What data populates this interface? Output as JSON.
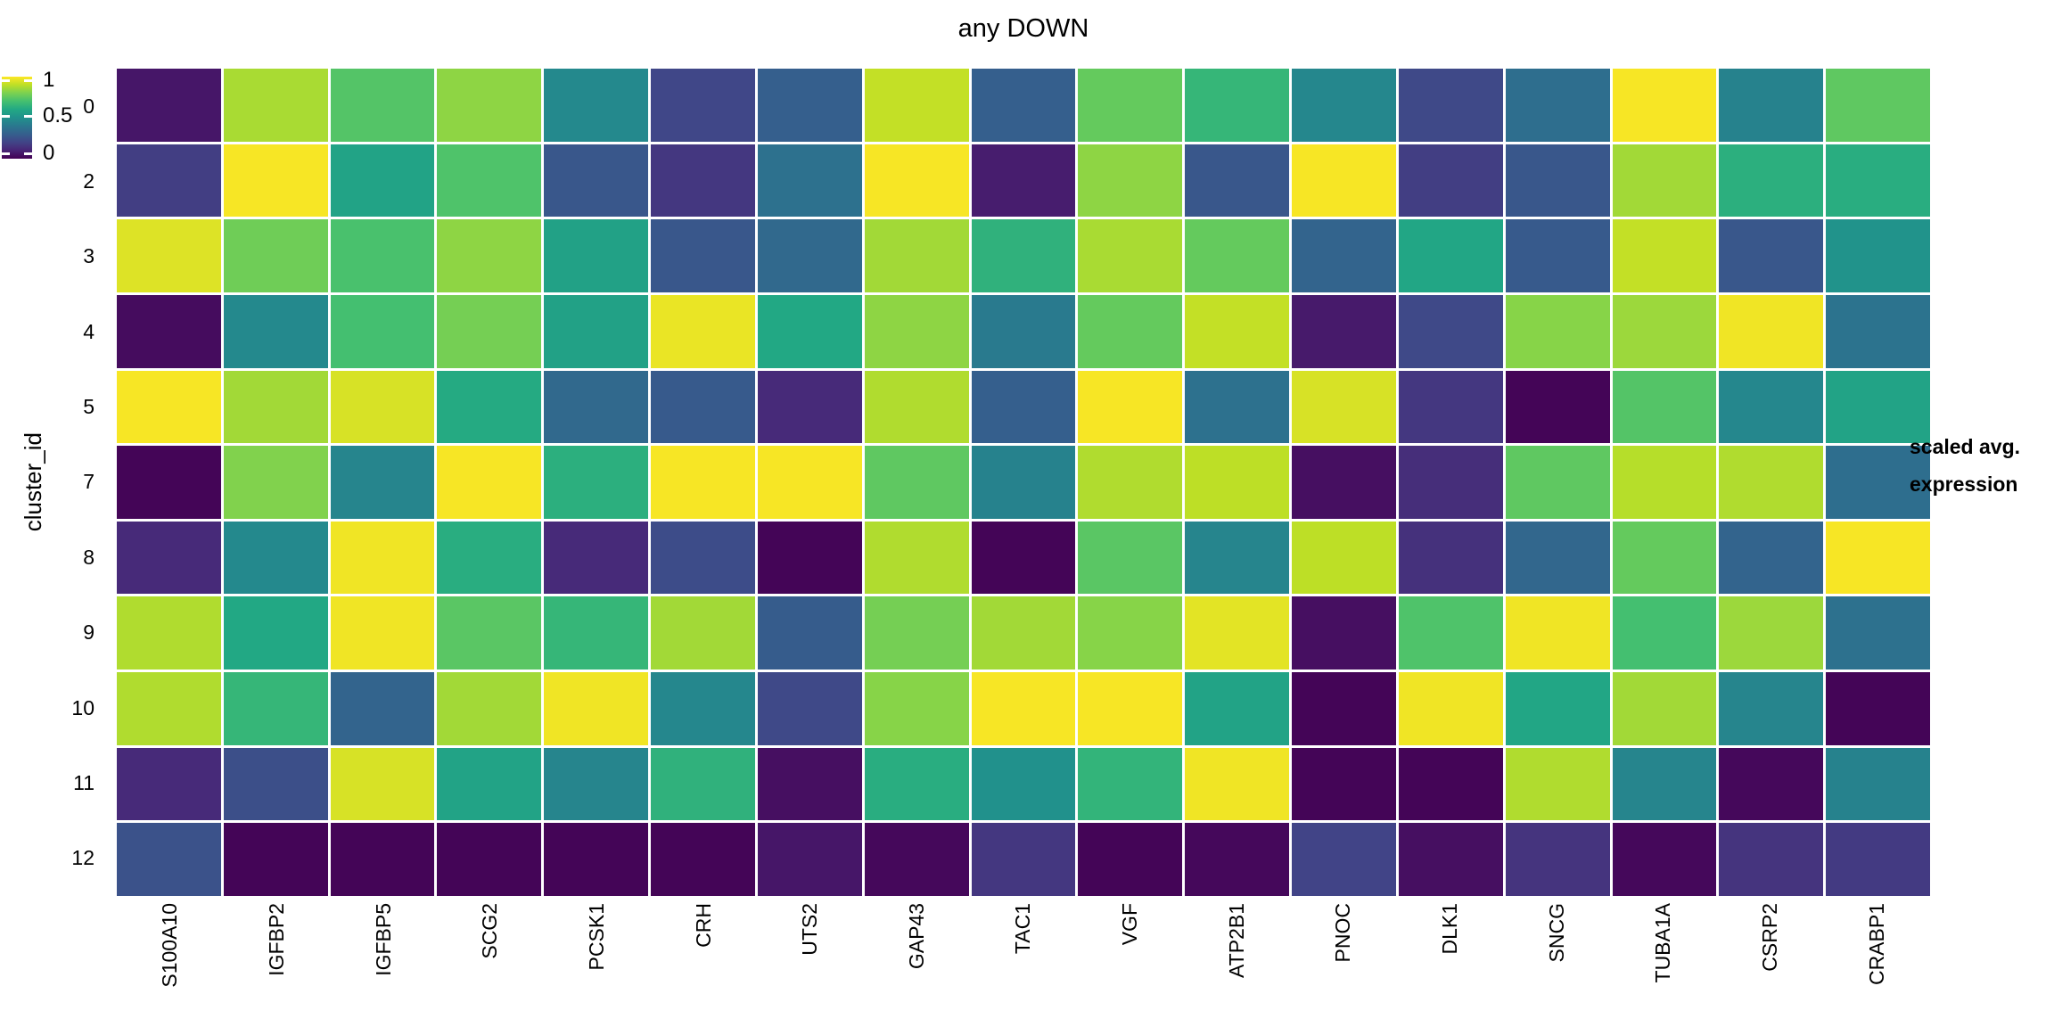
{
  "title": "any DOWN",
  "y_axis": {
    "label": "cluster_id"
  },
  "legend": {
    "title_line1": "scaled avg.",
    "title_line2": "expression",
    "ticks": [
      {
        "label": "1",
        "pos": 0.045
      },
      {
        "label": "0.5",
        "pos": 0.48
      },
      {
        "label": "0",
        "pos": 0.93
      }
    ]
  },
  "colors": {
    "background": "#ffffff",
    "grid": "#ffffff",
    "viridis_stops": [
      "#440154",
      "#482475",
      "#414487",
      "#355f8d",
      "#2a788e",
      "#21918c",
      "#22a884",
      "#44bf70",
      "#7ad151",
      "#bddf26",
      "#fde725"
    ]
  },
  "chart_data": {
    "type": "heatmap",
    "title": "any DOWN",
    "xlabel": "",
    "ylabel": "cluster_id",
    "legend_title": "scaled avg. expression",
    "colormap": "viridis",
    "color_range": [
      0,
      1
    ],
    "grid": false,
    "legend_position": "right",
    "columns": [
      "S100A10",
      "IGFBP2",
      "IGFBP5",
      "SCG2",
      "PCSK1",
      "CRH",
      "UTS2",
      "GAP43",
      "TAC1",
      "VGF",
      "ATP2B1",
      "PNOC",
      "DLK1",
      "SNCG",
      "TUBA1A",
      "CSRP2",
      "CRABP1"
    ],
    "rows": [
      "0",
      "2",
      "3",
      "4",
      "5",
      "7",
      "8",
      "9",
      "10",
      "11",
      "12"
    ],
    "values": [
      [
        0.06,
        0.87,
        0.73,
        0.83,
        0.47,
        0.21,
        0.3,
        0.91,
        0.3,
        0.76,
        0.66,
        0.46,
        0.22,
        0.36,
        0.99,
        0.44,
        0.75
      ],
      [
        0.18,
        0.99,
        0.58,
        0.72,
        0.27,
        0.16,
        0.37,
        0.99,
        0.08,
        0.83,
        0.27,
        0.99,
        0.18,
        0.27,
        0.86,
        0.63,
        0.62
      ],
      [
        0.95,
        0.78,
        0.71,
        0.83,
        0.57,
        0.27,
        0.34,
        0.86,
        0.64,
        0.87,
        0.76,
        0.32,
        0.59,
        0.28,
        0.91,
        0.27,
        0.51
      ],
      [
        0.03,
        0.47,
        0.7,
        0.79,
        0.57,
        0.97,
        0.6,
        0.83,
        0.41,
        0.76,
        0.91,
        0.07,
        0.22,
        0.82,
        0.85,
        0.98,
        0.38
      ],
      [
        0.99,
        0.86,
        0.94,
        0.61,
        0.34,
        0.28,
        0.12,
        0.88,
        0.3,
        0.99,
        0.37,
        0.94,
        0.16,
        0.01,
        0.73,
        0.46,
        0.58
      ],
      [
        0.01,
        0.81,
        0.45,
        0.99,
        0.63,
        0.99,
        0.99,
        0.75,
        0.44,
        0.88,
        0.9,
        0.04,
        0.13,
        0.75,
        0.89,
        0.88,
        0.36
      ],
      [
        0.12,
        0.47,
        0.98,
        0.62,
        0.12,
        0.23,
        0.01,
        0.88,
        0.01,
        0.74,
        0.45,
        0.9,
        0.14,
        0.33,
        0.76,
        0.32,
        0.99
      ],
      [
        0.88,
        0.6,
        0.98,
        0.74,
        0.66,
        0.86,
        0.29,
        0.79,
        0.86,
        0.82,
        0.96,
        0.04,
        0.72,
        0.98,
        0.7,
        0.85,
        0.37
      ],
      [
        0.88,
        0.66,
        0.32,
        0.86,
        0.98,
        0.46,
        0.22,
        0.82,
        0.99,
        0.99,
        0.58,
        0.01,
        0.98,
        0.59,
        0.86,
        0.45,
        0.01
      ],
      [
        0.12,
        0.24,
        0.94,
        0.58,
        0.45,
        0.64,
        0.04,
        0.62,
        0.5,
        0.65,
        0.98,
        0.01,
        0.01,
        0.88,
        0.45,
        0.02,
        0.44
      ],
      [
        0.25,
        0.01,
        0.01,
        0.01,
        0.01,
        0.01,
        0.06,
        0.02,
        0.16,
        0.01,
        0.02,
        0.2,
        0.04,
        0.15,
        0.02,
        0.15,
        0.17
      ]
    ]
  }
}
